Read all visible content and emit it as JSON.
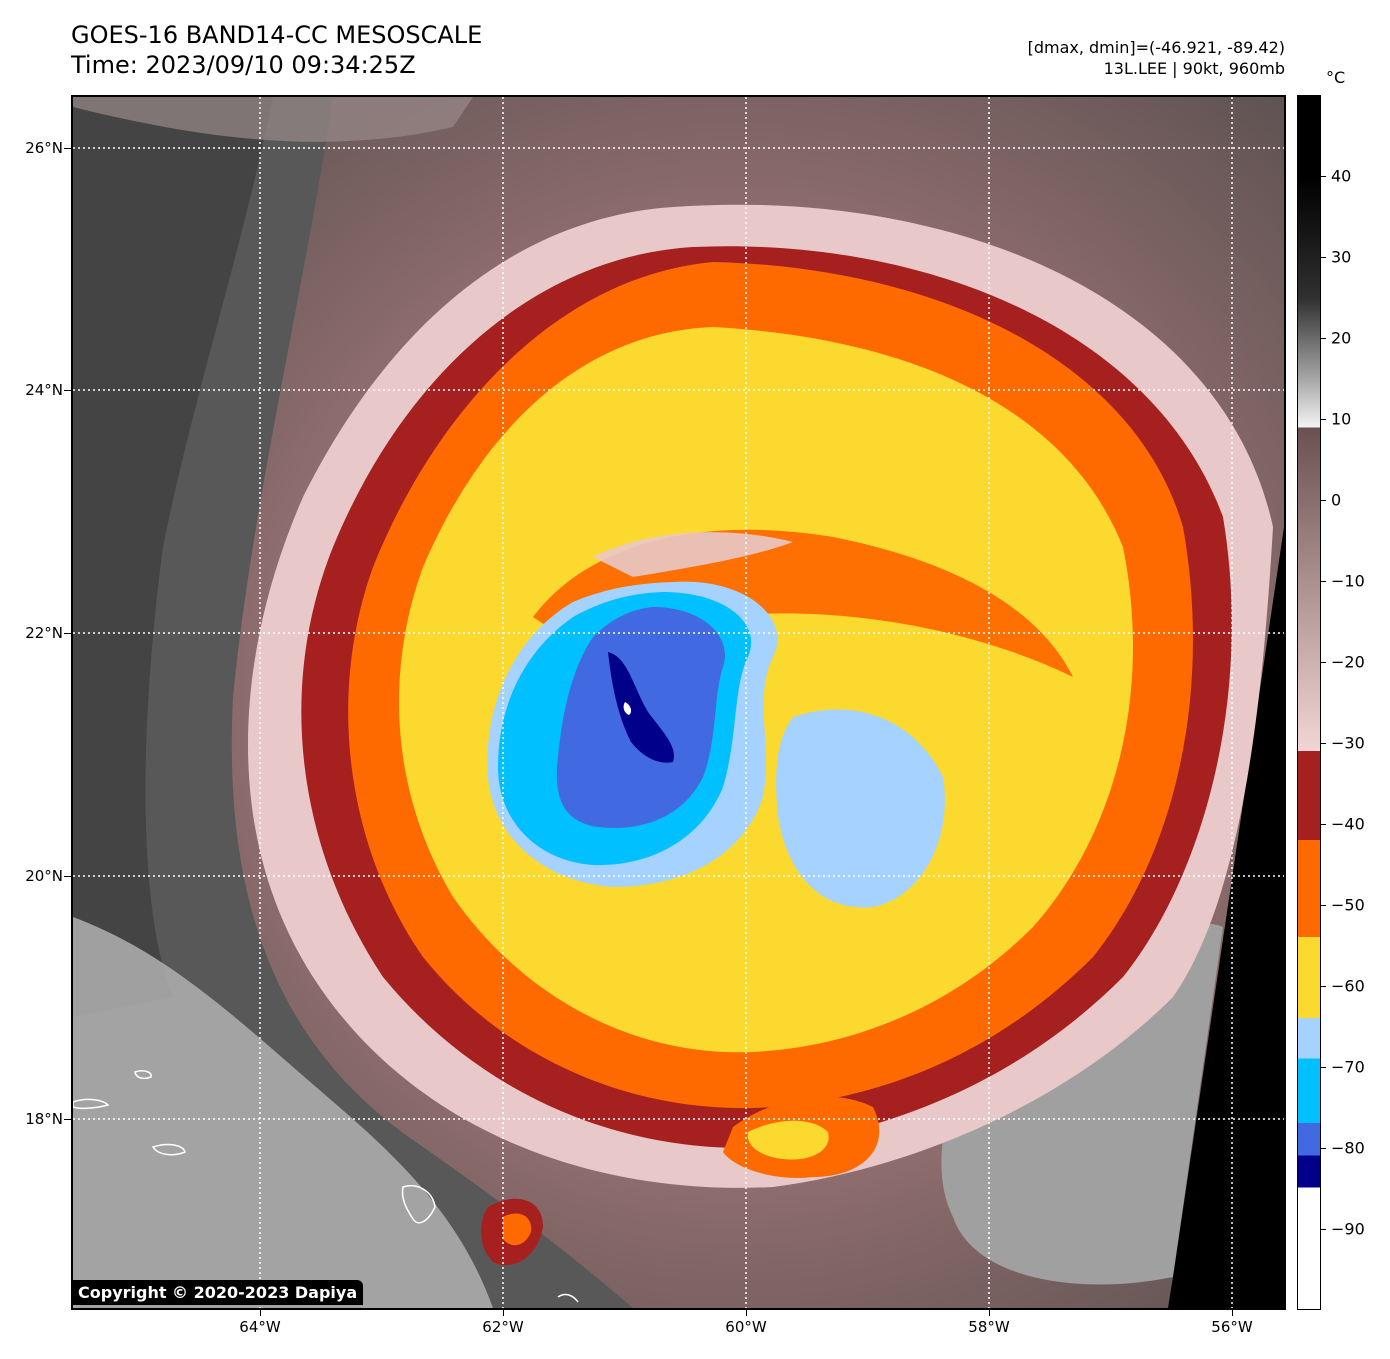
{
  "header": {
    "title_line1": "GOES-16 BAND14-CC MESOSCALE",
    "title_line2": "Time: 2023/09/10 09:34:25Z",
    "stats_line": "[dmax, dmin]=(-46.921, -89.42)",
    "storm_line": "13L.LEE | 90kt, 960mb"
  },
  "map": {
    "lat_labels": [
      "26°N",
      "24°N",
      "22°N",
      "20°N",
      "18°N"
    ],
    "lon_labels": [
      "64°W",
      "62°W",
      "60°W",
      "58°W",
      "56°W"
    ],
    "copyright": "Copyright © 2020-2023 Dapiya"
  },
  "colorbar": {
    "unit": "°C",
    "tick_labels": [
      "40",
      "30",
      "20",
      "10",
      "0",
      "−10",
      "−20",
      "−30",
      "−40",
      "−50",
      "−60",
      "−70",
      "−80",
      "−90"
    ],
    "tick_values": [
      40,
      30,
      20,
      10,
      0,
      -10,
      -20,
      -30,
      -40,
      -50,
      -60,
      -70,
      -80,
      -90
    ],
    "range": [
      -100,
      50
    ],
    "colors": {
      "warm_land": "#000000",
      "grey_top": "#303030",
      "grey_mid": "#9a9a9a",
      "white_10": "#f4f4f4",
      "brown_dark": "#6a5050",
      "pink_light": "#f2d6d6",
      "red_dark": "#a62020",
      "orange": "#ff6a00",
      "yellow": "#fcd92e",
      "light_blue": "#a5d2ff",
      "cyan": "#00c0ff",
      "royal_blue": "#4169e1",
      "navy": "#00008b",
      "white_cold": "#ffffff"
    }
  }
}
